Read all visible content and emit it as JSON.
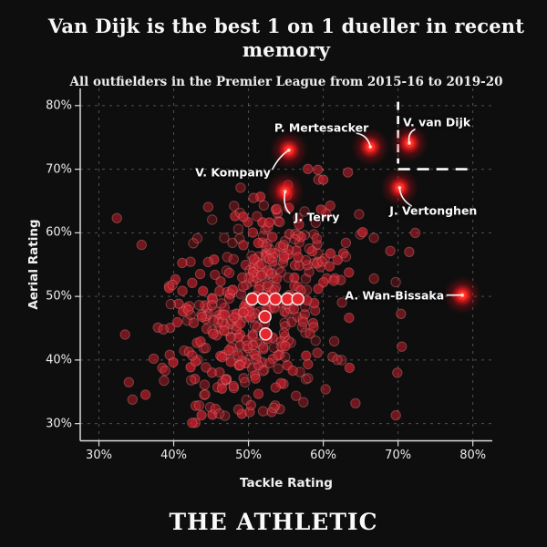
{
  "header": {
    "title": "Van Dijk is the best 1 on 1 dueller in recent memory",
    "subtitle": "All outfielders in the Premier League from 2015-16 to 2019-20"
  },
  "footer": {
    "brand": "THE ATHLETIC"
  },
  "colors": {
    "background": "#0e0e0e",
    "text": "#f2f2f2",
    "grid": "rgba(255,255,255,0.28)",
    "axis": "#dcdcdc",
    "point_fill": "#bf1f2b",
    "point_stroke": "rgba(255,140,140,0.35)",
    "bright_fill": "#e8262d",
    "bright_ring": "rgba(255,255,255,0.85)",
    "glow_core": "#ff2e24",
    "glow_inner": "#ffb3a6",
    "threshold": "#ffffff",
    "leader": "#f5f5f5"
  },
  "chart_data": {
    "type": "scatter",
    "title": "Van Dijk is the best 1 on 1 dueller in recent memory",
    "subtitle": "All outfielders in the Premier League from 2015-16 to 2019-20",
    "xlabel": "Tackle Rating",
    "ylabel": "Aerial Rating",
    "xlim": [
      27.5,
      82.6
    ],
    "ylim": [
      27.3,
      82.7
    ],
    "x_ticks": [
      30,
      40,
      50,
      60,
      70,
      80
    ],
    "y_ticks": [
      30,
      40,
      50,
      60,
      70,
      80
    ],
    "x_tick_labels": [
      "30%",
      "40%",
      "50%",
      "60%",
      "70%",
      "80%"
    ],
    "y_tick_labels": [
      "30%",
      "40%",
      "50%",
      "60%",
      "70%",
      "80%"
    ],
    "grid": "dashed",
    "legend": "none",
    "highlighted_players": [
      {
        "name": "P. Mertesacker",
        "tackle": 66.3,
        "aerial": 73.5,
        "label_anchor": "end",
        "label_offset": [
          -2,
          -21
        ],
        "leader": [
          [
            -3,
            -13
          ],
          [
            -15,
            -15
          ]
        ]
      },
      {
        "name": "V. van Dijk",
        "tackle": 71.5,
        "aerial": 74.1,
        "label_anchor": "start",
        "label_offset": [
          -7,
          -23
        ],
        "leader": [
          [
            -2,
            -11
          ],
          [
            6,
            -15
          ]
        ]
      },
      {
        "name": "V. Kompany",
        "tackle": 55.4,
        "aerial": 73.0,
        "label_anchor": "end",
        "label_offset": [
          -20,
          24
        ],
        "leader": [
          [
            -11,
            7
          ],
          [
            -18,
            21
          ]
        ]
      },
      {
        "name": "J. Terry",
        "tackle": 54.9,
        "aerial": 66.5,
        "label_anchor": "start",
        "label_offset": [
          10,
          28
        ],
        "leader": [
          [
            -3,
            16
          ],
          [
            5,
            24
          ]
        ]
      },
      {
        "name": "J. Vertonghen",
        "tackle": 70.2,
        "aerial": 67.1,
        "label_anchor": "start",
        "label_offset": [
          -11,
          25
        ],
        "leader": [
          [
            1,
            13
          ],
          [
            13,
            20
          ]
        ]
      },
      {
        "name": "A. Wan-Bissaka",
        "tackle": 78.6,
        "aerial": 50.2,
        "label_anchor": "end",
        "label_offset": [
          -20,
          0
        ],
        "leader": [
          [
            -8,
            0
          ],
          [
            -17,
            0
          ]
        ]
      }
    ],
    "threshold_lines": {
      "vline": {
        "tackle": 70,
        "aerial_from": 70.9,
        "aerial_to": 80.6
      },
      "hline": {
        "aerial": 70,
        "tackle_from": 70,
        "tackle_to": 79.9
      }
    },
    "bright_points": [
      [
        50.5,
        49.6
      ],
      [
        52.0,
        49.6
      ],
      [
        53.6,
        49.6
      ],
      [
        55.2,
        49.6
      ],
      [
        56.6,
        49.6
      ],
      [
        52.2,
        46.8
      ],
      [
        52.3,
        44.1
      ]
    ],
    "outlier_points": [
      [
        32.4,
        62.3
      ],
      [
        35.7,
        58.1
      ],
      [
        70.5,
        42.1
      ],
      [
        69.9,
        38.0
      ],
      [
        64.3,
        33.2
      ],
      [
        69.7,
        31.3
      ],
      [
        72.3,
        60.0
      ],
      [
        71.5,
        57.0
      ],
      [
        33.5,
        44.0
      ],
      [
        34.0,
        36.5
      ]
    ],
    "point_cloud": {
      "count": 430,
      "seed": 7,
      "mean": [
        51.3,
        48.0
      ],
      "std": [
        6.4,
        8.3
      ],
      "slope": 0.55,
      "clip_tackle": [
        31.5,
        71.0
      ],
      "clip_aerial": [
        29.5,
        71.5
      ],
      "radius": 5.2,
      "opacity_range": [
        0.28,
        0.8
      ]
    }
  }
}
